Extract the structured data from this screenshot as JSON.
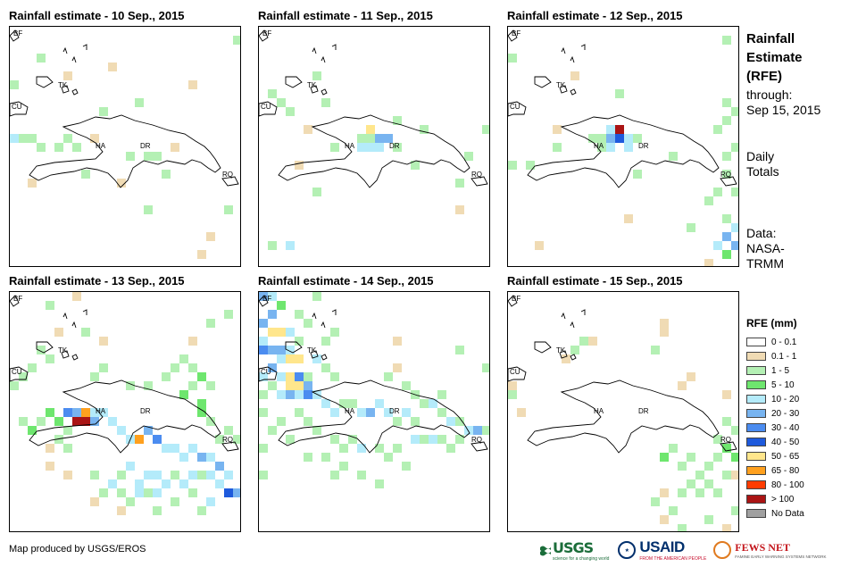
{
  "panels": [
    {
      "title": "Rainfall estimate - 10 Sep., 2015",
      "day": "10"
    },
    {
      "title": "Rainfall estimate - 11 Sep., 2015",
      "day": "11"
    },
    {
      "title": "Rainfall estimate - 12 Sep., 2015",
      "day": "12"
    },
    {
      "title": "Rainfall estimate - 13 Sep., 2015",
      "day": "13"
    },
    {
      "title": "Rainfall estimate - 14 Sep., 2015",
      "day": "14"
    },
    {
      "title": "Rainfall estimate - 15 Sep., 2015",
      "day": "15"
    }
  ],
  "map_labels": [
    "BF",
    "TK",
    "CU",
    "HA",
    "DR",
    "RQ"
  ],
  "side": {
    "title_line1": "Rainfall",
    "title_line2": "Estimate",
    "title_line3": "(RFE)",
    "through_line1": "through:",
    "through_line2": "Sep 15, 2015",
    "daily_line1": "Daily",
    "daily_line2": "Totals",
    "data_line1": "Data:",
    "data_line2": "NASA-",
    "data_line3": "TRMM"
  },
  "legend": {
    "title": "RFE (mm)",
    "items": [
      {
        "label": "0 - 0.1",
        "color": "#ffffff"
      },
      {
        "label": "0.1 - 1",
        "color": "#f0dbb4"
      },
      {
        "label": "1 - 5",
        "color": "#b4f0b4"
      },
      {
        "label": "5 - 10",
        "color": "#6ee66e"
      },
      {
        "label": "10 - 20",
        "color": "#b4ebfa"
      },
      {
        "label": "20 - 30",
        "color": "#78b4f0"
      },
      {
        "label": "30 - 40",
        "color": "#4b8cf0"
      },
      {
        "label": "40 - 50",
        "color": "#1e5adc"
      },
      {
        "label": "50 - 65",
        "color": "#ffe68c"
      },
      {
        "label": "65 - 80",
        "color": "#ffa01e"
      },
      {
        "label": "80 - 100",
        "color": "#ff3c00"
      },
      {
        "label": "> 100",
        "color": "#aa1414"
      },
      {
        "label": "No Data",
        "color": "#a0a0a0"
      }
    ]
  },
  "footer": {
    "credit": "Map produced by USGS/EROS"
  },
  "logos": {
    "usgs": "USGS",
    "usgs_tagline": "science for a changing world",
    "usaid": "USAID",
    "usaid_tagline": "FROM THE AMERICAN PEOPLE",
    "fews": "FEWS NET",
    "fews_tagline": "FAMINE EARLY WARNING SYSTEMS NETWORK"
  }
}
